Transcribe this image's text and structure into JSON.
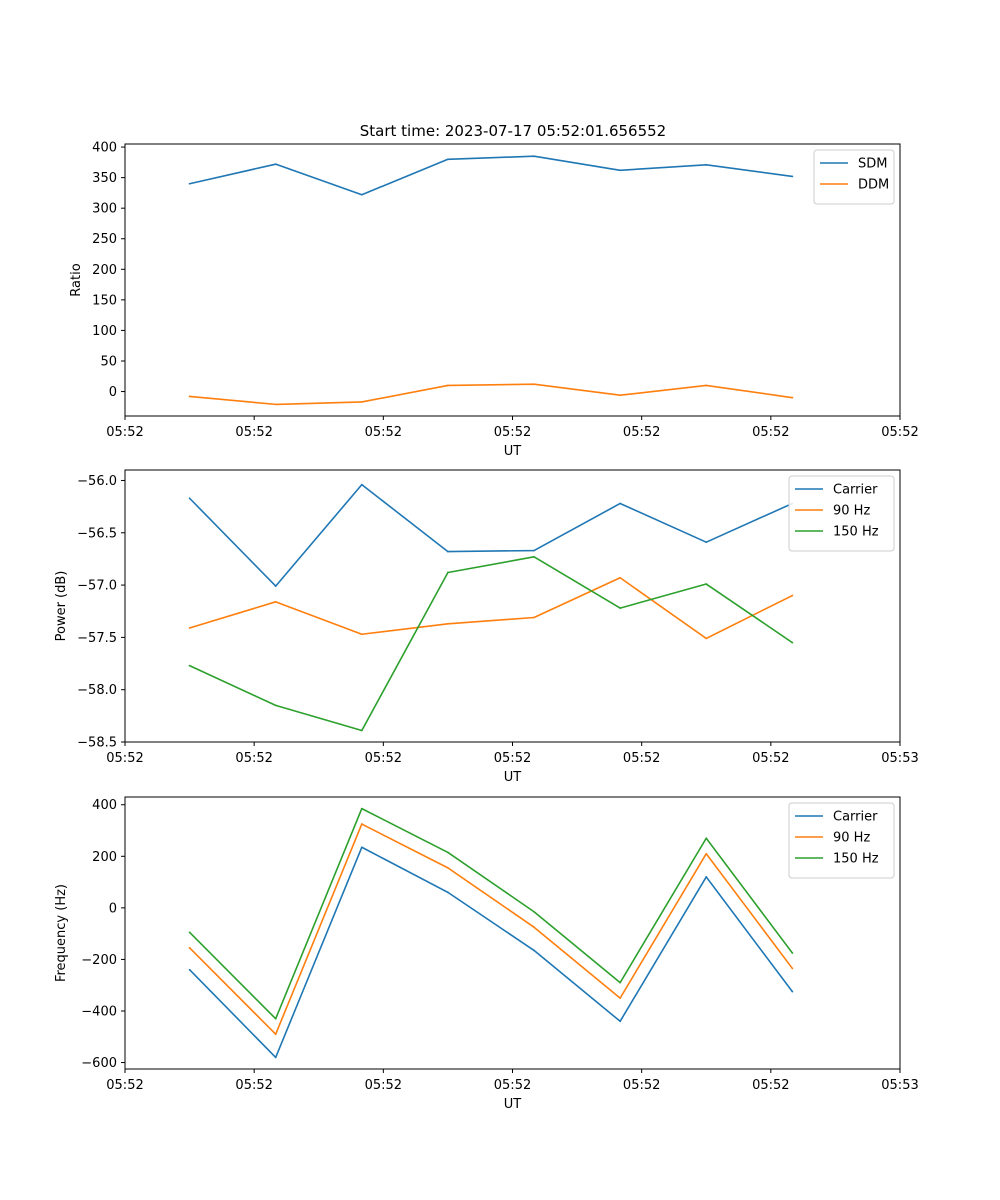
{
  "figure_title": "Start time: 2023-07-17 05:52:01.656552",
  "chart_data": [
    {
      "type": "line",
      "ylabel": "Ratio",
      "xlabel": "UT",
      "x": [
        1,
        2,
        3,
        4,
        5,
        6,
        7,
        8
      ],
      "xlim": [
        0.25,
        9.25
      ],
      "x_ticks": [
        0.25,
        1.75,
        3.25,
        4.75,
        6.25,
        7.75,
        9.25
      ],
      "x_tick_labels": [
        "05:52",
        "05:52",
        "05:52",
        "05:52",
        "05:52",
        "05:52",
        "05:52"
      ],
      "ylim": [
        -40,
        405
      ],
      "y_ticks": [
        0,
        50,
        100,
        150,
        200,
        250,
        300,
        350,
        400
      ],
      "y_tick_labels": [
        "0",
        "50",
        "100",
        "150",
        "200",
        "250",
        "300",
        "350",
        "400"
      ],
      "legend_position": "top-right",
      "series": [
        {
          "name": "SDM",
          "color": "#1f77b4",
          "values": [
            340,
            372,
            322,
            380,
            385,
            362,
            371,
            352
          ]
        },
        {
          "name": "DDM",
          "color": "#ff7f0e",
          "values": [
            -8,
            -21,
            -17,
            10,
            12,
            -6,
            10,
            -10
          ]
        }
      ]
    },
    {
      "type": "line",
      "ylabel": "Power (dB)",
      "xlabel": "UT",
      "x": [
        1,
        2,
        3,
        4,
        5,
        6,
        7,
        8
      ],
      "xlim": [
        0.25,
        9.25
      ],
      "x_ticks": [
        0.25,
        1.75,
        3.25,
        4.75,
        6.25,
        7.75,
        9.25
      ],
      "x_tick_labels": [
        "05:52",
        "05:52",
        "05:52",
        "05:52",
        "05:52",
        "05:52",
        "05:53"
      ],
      "ylim": [
        -58.5,
        -55.9
      ],
      "y_ticks": [
        -56.0,
        -56.5,
        -57.0,
        -57.5,
        -58.0,
        -58.5
      ],
      "y_tick_labels": [
        "−56.0",
        "−56.5",
        "−57.0",
        "−57.5",
        "−58.0",
        "−58.5"
      ],
      "legend_position": "top-right",
      "series": [
        {
          "name": "Carrier",
          "color": "#1f77b4",
          "values": [
            -56.17,
            -57.01,
            -56.04,
            -56.68,
            -56.67,
            -56.22,
            -56.59,
            -56.22
          ]
        },
        {
          "name": "90 Hz",
          "color": "#ff7f0e",
          "values": [
            -57.41,
            -57.16,
            -57.47,
            -57.37,
            -57.31,
            -56.93,
            -57.51,
            -57.1
          ]
        },
        {
          "name": "150 Hz",
          "color": "#2ca02c",
          "values": [
            -57.77,
            -58.15,
            -58.39,
            -56.88,
            -56.73,
            -57.22,
            -56.99,
            -57.55
          ]
        }
      ]
    },
    {
      "type": "line",
      "ylabel": "Frequency (Hz)",
      "xlabel": "UT",
      "x": [
        1,
        2,
        3,
        4,
        5,
        6,
        7,
        8
      ],
      "xlim": [
        0.25,
        9.25
      ],
      "x_ticks": [
        0.25,
        1.75,
        3.25,
        4.75,
        6.25,
        7.75,
        9.25
      ],
      "x_tick_labels": [
        "05:52",
        "05:52",
        "05:52",
        "05:52",
        "05:52",
        "05:52",
        "05:53"
      ],
      "ylim": [
        -625,
        430
      ],
      "y_ticks": [
        400,
        200,
        0,
        -200,
        -400,
        -600
      ],
      "y_tick_labels": [
        "400",
        "200",
        "0",
        "−200",
        "−400",
        "−600"
      ],
      "legend_position": "top-right",
      "series": [
        {
          "name": "Carrier",
          "color": "#1f77b4",
          "values": [
            -240,
            -580,
            235,
            60,
            -165,
            -440,
            120,
            -325
          ]
        },
        {
          "name": "90 Hz",
          "color": "#ff7f0e",
          "values": [
            -155,
            -490,
            325,
            155,
            -75,
            -350,
            210,
            -235
          ]
        },
        {
          "name": "150 Hz",
          "color": "#2ca02c",
          "values": [
            -95,
            -430,
            385,
            215,
            -15,
            -290,
            270,
            -175
          ]
        }
      ]
    }
  ]
}
